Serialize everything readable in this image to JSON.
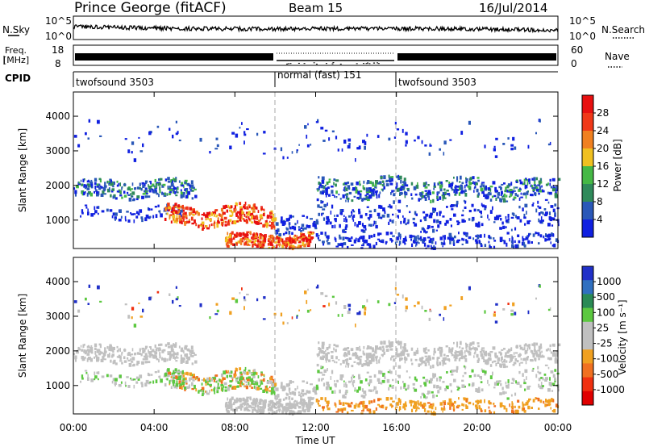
{
  "header": {
    "title": "Prince George (fitACF)",
    "beam": "Beam 15",
    "date": "16/Jul/2014"
  },
  "panels": {
    "nsky": {
      "left_label": "N.Sky",
      "right_label": "N.Search",
      "tick_top": "10^5",
      "tick_bottom": "10^0",
      "right_tick_top": "10^5",
      "right_tick_bottom": "10^0"
    },
    "freq": {
      "left_label_1": "Freq.",
      "left_label_2": "[MHz]",
      "tick_top": "18",
      "tick_bottom": "8",
      "right_label": "Nave",
      "right_tick_top": "60",
      "right_tick_bottom": "0"
    },
    "cpid": {
      "label": "CPID",
      "segments": [
        "twofsound 3503",
        "normal (fast) 151",
        "twofsound 3503"
      ]
    }
  },
  "colors": {
    "power": [
      "#1020e0",
      "#2a58b8",
      "#2f8a5a",
      "#45b845",
      "#f0c020",
      "#f08020",
      "#f03818",
      "#e81010"
    ],
    "velocity": [
      "#2030c8",
      "#3070c0",
      "#2a8a55",
      "#5cc840",
      "#c0c0c0",
      "#c0c0c0",
      "#f0a020",
      "#f07020",
      "#f03010",
      "#e00000"
    ]
  },
  "chart_data": [
    {
      "type": "heatmap",
      "parameter": "power",
      "ylabel": "Slant Range [km]",
      "xlabel": "",
      "xlim": [
        0,
        24
      ],
      "ylim": [
        180,
        4700
      ],
      "x_ticks": [
        "00:00",
        "04:00",
        "08:00",
        "12:00",
        "16:00",
        "20:00",
        "00:00"
      ],
      "y_ticks": [
        "1000",
        "2000",
        "3000",
        "4000"
      ],
      "colorbar": {
        "label": "Power [dB]",
        "ticks": [
          "4",
          "8",
          "12",
          "16",
          "20",
          "24",
          "28"
        ]
      },
      "features": [
        {
          "time": [
            0,
            6
          ],
          "range": [
            1500,
            2400
          ],
          "level": "green-blue"
        },
        {
          "time": [
            5,
            10
          ],
          "range": [
            800,
            1500
          ],
          "level": "red-orange"
        },
        {
          "time": [
            7.5,
            12
          ],
          "range": [
            200,
            600
          ],
          "level": "red"
        },
        {
          "time": [
            12,
            24
          ],
          "range": [
            1600,
            2300
          ],
          "level": "green-blue"
        }
      ]
    },
    {
      "type": "heatmap",
      "parameter": "velocity",
      "ylabel": "Slant Range [km]",
      "xlabel": "Time UT",
      "xlim": [
        0,
        24
      ],
      "ylim": [
        180,
        4700
      ],
      "x_ticks": [
        "00:00",
        "04:00",
        "08:00",
        "12:00",
        "16:00",
        "20:00",
        "00:00"
      ],
      "y_ticks": [
        "1000",
        "2000",
        "3000",
        "4000"
      ],
      "colorbar": {
        "label": "Velocity [m s⁻¹]",
        "ticks": [
          "1000",
          "500",
          "100",
          "25",
          "-25",
          "-100",
          "-500",
          "-1000"
        ]
      },
      "features": [
        {
          "time": [
            0,
            6
          ],
          "range": [
            1500,
            2400
          ],
          "level": "gray"
        },
        {
          "time": [
            5,
            10
          ],
          "range": [
            800,
            1500
          ],
          "level": "green-orange"
        },
        {
          "time": [
            8,
            12
          ],
          "range": [
            200,
            800
          ],
          "level": "gray"
        },
        {
          "time": [
            12,
            24
          ],
          "range": [
            1500,
            2300
          ],
          "level": "gray"
        },
        {
          "time": [
            12,
            24
          ],
          "range": [
            180,
            600
          ],
          "level": "orange"
        }
      ]
    }
  ]
}
